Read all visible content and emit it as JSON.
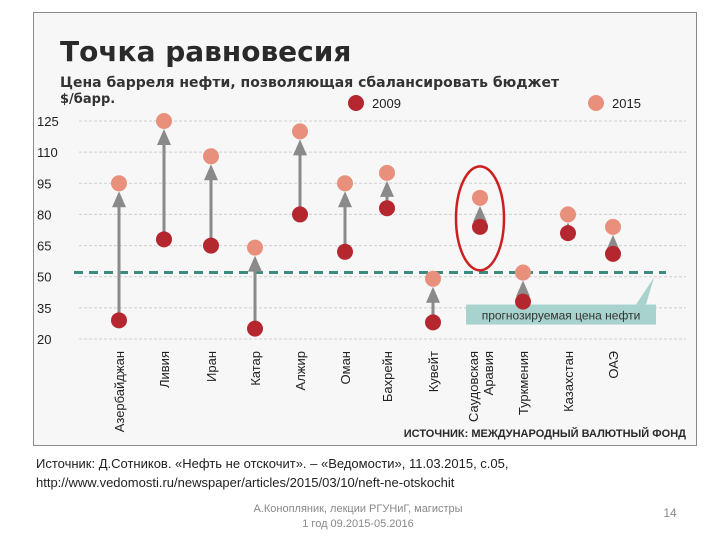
{
  "chart_data": {
    "type": "scatter",
    "title": "Точка равновесия",
    "subtitle": "Цена барреля нефти, позволяющая сбалансировать бюджет",
    "unit": "$/барр.",
    "yticks": [
      20,
      35,
      50,
      65,
      80,
      95,
      110,
      125
    ],
    "ylim": [
      15,
      130
    ],
    "grid": true,
    "legend": "top-right",
    "categories": [
      "Азербайджан",
      "Ливия",
      "Иран",
      "Катар",
      "Алжир",
      "Оман",
      "Бахрейн",
      "Кувейт",
      "Саудовская Аравия",
      "Туркмения",
      "Казахстан",
      "ОАЭ"
    ],
    "series": [
      {
        "name": "2009",
        "color": "#b5272f",
        "values": [
          29,
          68,
          65,
          25,
          80,
          62,
          83,
          28,
          74,
          38,
          71,
          61
        ]
      },
      {
        "name": "2015",
        "color": "#e8907c",
        "values": [
          95,
          125,
          108,
          64,
          120,
          95,
          100,
          49,
          88,
          52,
          80,
          74
        ]
      }
    ],
    "forecast": {
      "value": 52,
      "label": "прогнозируемая цена нефти",
      "color": "#3d8a80"
    },
    "highlight": {
      "category": "Саудовская Аравия",
      "color": "#cc2020"
    },
    "source": "ИСТОЧНИК: МЕЖДУНАРОДНЫЙ ВАЛЮТНЫЙ ФОНД"
  },
  "caption": {
    "line1": "Источник: Д.Сотников. «Нефть не отскочит». – «Ведомости», 11.03.2015, с.05,",
    "line2": "http://www.vedomosti.ru/newspaper/articles/2015/03/10/neft-ne-otskochit"
  },
  "footer": {
    "author_line1": "А.Конопляник, лекции РГУНиГ, магистры",
    "author_line2": "1 год 09.2015-05.2016",
    "page_number": "14"
  }
}
